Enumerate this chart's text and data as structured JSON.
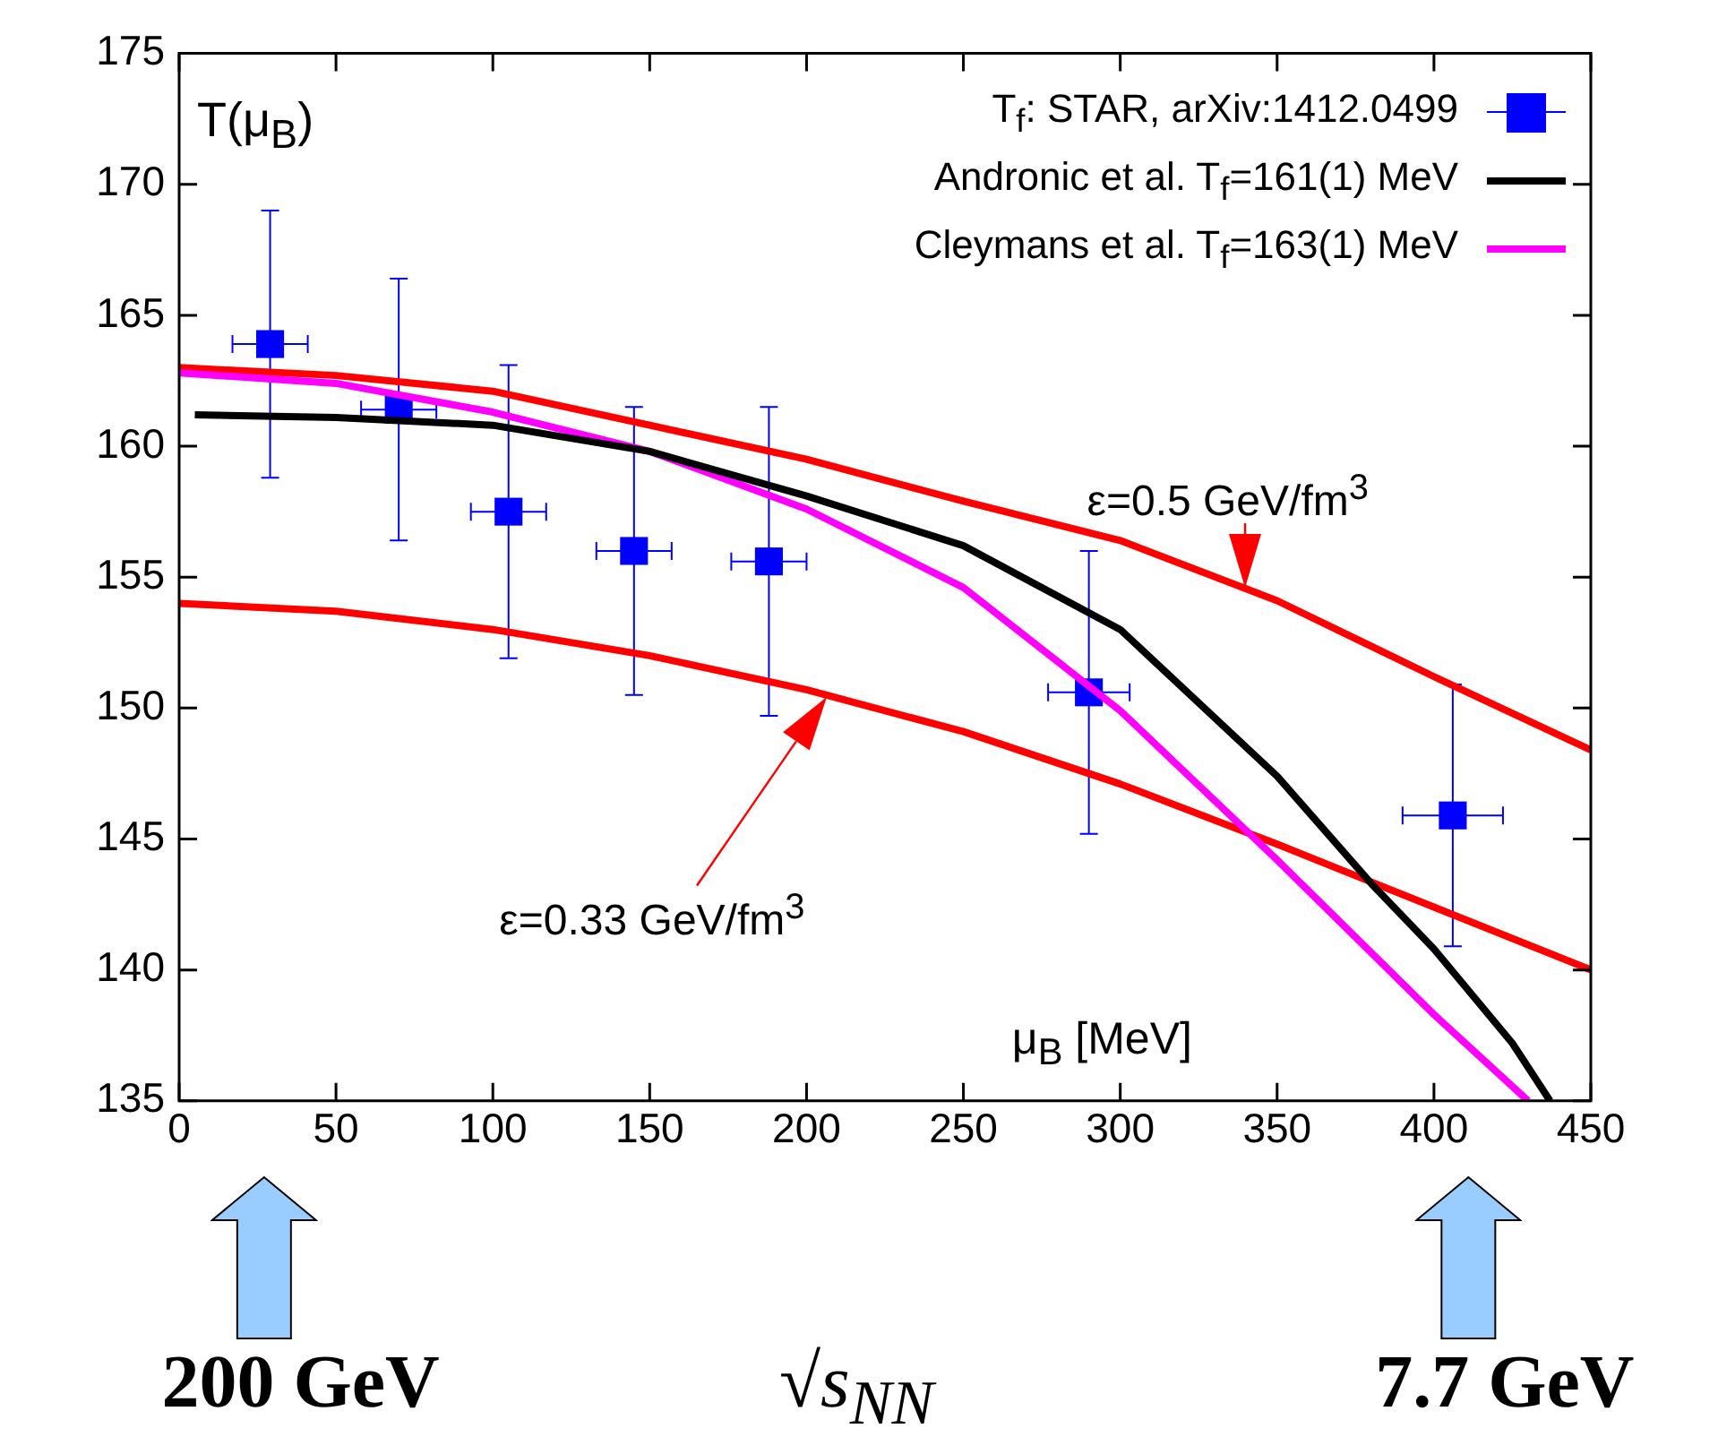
{
  "chart_data": {
    "type": "line",
    "xlabel": "μ$_{B}$ [MeV]",
    "ylabel": "T(μ$_{B}$)",
    "xlim": [
      0,
      450
    ],
    "ylim": [
      135,
      175
    ],
    "xticks": [
      0,
      50,
      100,
      150,
      200,
      250,
      300,
      350,
      400,
      450
    ],
    "yticks": [
      135,
      140,
      145,
      150,
      155,
      160,
      165,
      170,
      175
    ],
    "grid": false,
    "legend": "top right",
    "series": [
      {
        "type": "scatter",
        "marker": "square",
        "name": "T$_{f}$: STAR, arXiv:1412.0499",
        "color": "#0000ff",
        "x": [
          29,
          70,
          105,
          145,
          188,
          290,
          406
        ],
        "values": [
          163.9,
          161.4,
          157.5,
          156.0,
          155.6,
          150.6,
          145.9
        ],
        "errors": [
          5.1,
          5.0,
          5.6,
          5.5,
          5.9,
          5.4,
          5.0
        ],
        "xerrors": [
          12,
          12,
          12,
          12,
          12,
          13,
          16
        ]
      },
      {
        "name": "Andronic et al. T$_{f}$=161(1) MeV",
        "color": "#000000",
        "x": [
          5,
          50,
          100,
          150,
          200,
          250,
          300,
          350,
          380,
          400,
          425,
          437
        ],
        "values": [
          161.2,
          161.1,
          160.8,
          159.8,
          158.1,
          156.2,
          153.0,
          147.4,
          143.3,
          140.8,
          137.2,
          135
        ]
      },
      {
        "name": "Cleymans et al. T$_{f}$=163(1) MeV",
        "color": "#ff00ff",
        "x": [
          0,
          50,
          100,
          150,
          200,
          250,
          300,
          350,
          400,
          430
        ],
        "values": [
          162.8,
          162.4,
          161.3,
          159.8,
          157.6,
          154.6,
          149.9,
          144.2,
          138.3,
          135
        ]
      },
      {
        "color": "#ff0000",
        "x": [
          0,
          50,
          100,
          150,
          200,
          250,
          300,
          350,
          400,
          450
        ],
        "values": [
          163.0,
          162.7,
          162.1,
          160.8,
          159.5,
          157.9,
          156.4,
          154.1,
          151.2,
          148.4
        ]
      },
      {
        "color": "#ff0000",
        "x": [
          0,
          50,
          100,
          150,
          200,
          250,
          300,
          350,
          400,
          450
        ],
        "values": [
          154.0,
          153.7,
          153.0,
          152.0,
          150.7,
          149.1,
          147.1,
          144.8,
          142.4,
          140.0
        ]
      }
    ],
    "annotations": [
      {
        "text": "ε=0.5 GeV/fm$^{3}$",
        "x": 340,
        "y": 154.6
      },
      "ε=0.33 GeV/fm$^{3}$",
      "200 GeV",
      "√s$_{NN}$",
      "7.7 GeV"
    ]
  }
}
